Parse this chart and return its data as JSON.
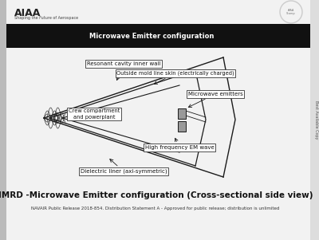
{
  "bg_color": "#f2f2f2",
  "title": "IMRD -Microwave Emitter configuration (Cross-sectional side view)",
  "footer": "NAVAIR Public Release 2018-854. Distribution Statement A - Approved for public release; distribution is unlimited",
  "header_black_bar_text": "Microwave Emitter configuration",
  "labels": {
    "resonant_cavity": "Resonant cavity inner wall",
    "outside_mold": "Outside mold line skin (electrically charged)",
    "microwave_emitters": "Microwave emitters",
    "crew_compartment": "Crew compartment\nand powerplant",
    "high_freq": "High frequency EM wave",
    "dielectric": "Dielectric liner (axi-symmetric)"
  },
  "line_color": "#1a1a1a",
  "emitter_color": "#999999",
  "header_color": "#111111"
}
